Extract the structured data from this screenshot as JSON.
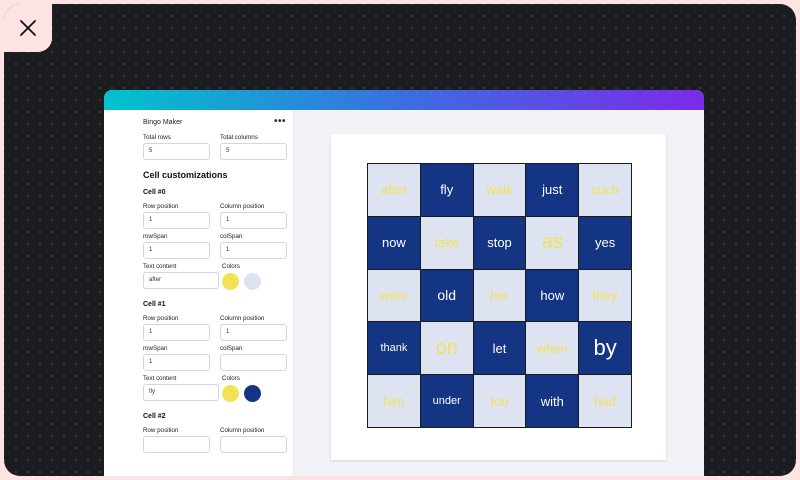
{
  "colors": {
    "yellow": "#f3e256",
    "navy": "#143584",
    "light": "#dde3f1"
  },
  "sidebar": {
    "title": "Bingo Maker",
    "menu_label": "•••",
    "total_rows_label": "Total rows",
    "total_rows_value": "5",
    "total_columns_label": "Total columns",
    "total_columns_value": "5",
    "section_title": "Cell customizations",
    "row_position_label": "Row position",
    "column_position_label": "Column position",
    "rowspan_label": "rowSpan",
    "colspan_label": "colSpan",
    "text_content_label": "Text content",
    "colors_label": "Colors",
    "cells": [
      {
        "title": "Cell #0",
        "row_position": "1",
        "column_position": "1",
        "rowspan": "1",
        "colspan": "1",
        "text": "after",
        "color_text": "#f3e256",
        "color_bg": "#dde3f1"
      },
      {
        "title": "Cell #1",
        "row_position": "1",
        "column_position": "1",
        "rowspan": "1",
        "colspan": "",
        "text": "fly",
        "color_text": "#f3e256",
        "color_bg": "#143584"
      },
      {
        "title": "Cell #2"
      }
    ]
  },
  "board": {
    "cells": [
      {
        "text": "after",
        "bg": "light",
        "size": 13
      },
      {
        "text": "fly",
        "bg": "dark",
        "size": 13
      },
      {
        "text": "walk",
        "bg": "light",
        "size": 13
      },
      {
        "text": "just",
        "bg": "dark",
        "size": 13
      },
      {
        "text": "such",
        "bg": "light",
        "size": 13
      },
      {
        "text": "now",
        "bg": "dark",
        "size": 13
      },
      {
        "text": "take",
        "bg": "light",
        "size": 13
      },
      {
        "text": "stop",
        "bg": "dark",
        "size": 13
      },
      {
        "text": "as",
        "bg": "light",
        "size": 20
      },
      {
        "text": "yes",
        "bg": "dark",
        "size": 13
      },
      {
        "text": "were",
        "bg": "light",
        "size": 13
      },
      {
        "text": "old",
        "bg": "dark",
        "size": 14
      },
      {
        "text": "her",
        "bg": "light",
        "size": 13
      },
      {
        "text": "how",
        "bg": "dark",
        "size": 13
      },
      {
        "text": "they",
        "bg": "light",
        "size": 13
      },
      {
        "text": "thank",
        "bg": "dark",
        "size": 11
      },
      {
        "text": "on",
        "bg": "light",
        "size": 20
      },
      {
        "text": "let",
        "bg": "dark",
        "size": 13
      },
      {
        "text": "when",
        "bg": "light",
        "size": 13
      },
      {
        "text": "by",
        "bg": "dark",
        "size": 22
      },
      {
        "text": "him",
        "bg": "light",
        "size": 13
      },
      {
        "text": "under",
        "bg": "dark",
        "size": 11
      },
      {
        "text": "too",
        "bg": "light",
        "size": 13
      },
      {
        "text": "with",
        "bg": "dark",
        "size": 13
      },
      {
        "text": "had",
        "bg": "light",
        "size": 13
      }
    ]
  }
}
